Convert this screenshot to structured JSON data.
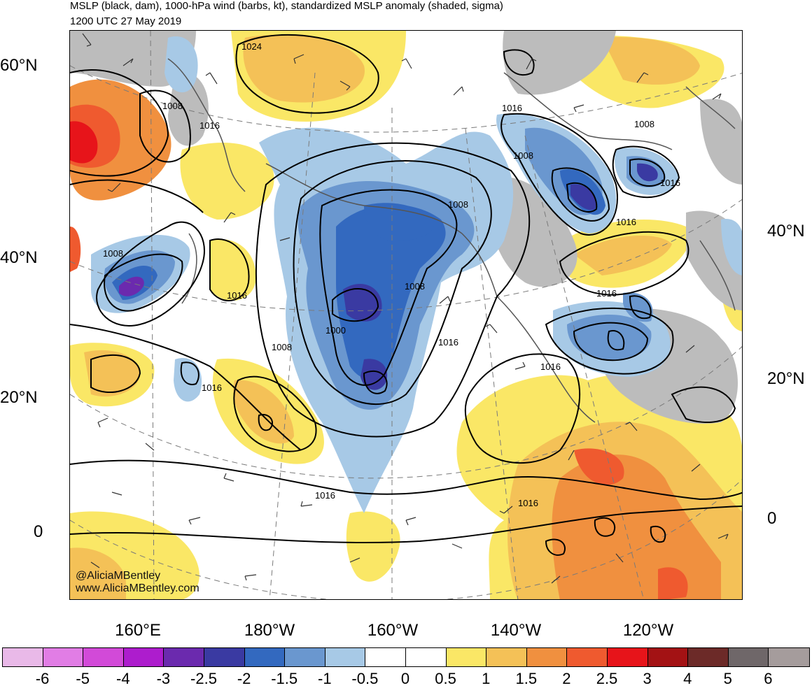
{
  "title": {
    "line1": "MSLP (black, dam), 1000-hPa wind (barbs, kt), standardized MSLP anomaly (shaded, sigma)",
    "line2": "1200 UTC 27 May 2019"
  },
  "credits": {
    "handle": "@AliciaMBentley",
    "website": "www.AliciaMBentley.com"
  },
  "lat_labels_left": [
    "60°N",
    "40°N",
    "20°N",
    "0"
  ],
  "lat_labels_right": [
    "40°N",
    "20°N",
    "0"
  ],
  "lon_labels": [
    "160°E",
    "180°W",
    "160°W",
    "140°W",
    "120°W"
  ],
  "isobar_labels": [
    "1024",
    "1008",
    "1016",
    "1016",
    "1008",
    "1008",
    "1016",
    "1008",
    "1016",
    "1008",
    "1008",
    "1000",
    "1008",
    "1016",
    "1016",
    "1016",
    "1016",
    "1016",
    "1016",
    "1016"
  ],
  "colorbar": {
    "colors": [
      "#e9b9e8",
      "#e17de5",
      "#d24ad8",
      "#ad1dcd",
      "#6b2aae",
      "#3a3aa2",
      "#3369bf",
      "#6a97cf",
      "#a7c9e6",
      "#ffffff",
      "#ffffff",
      "#fae766",
      "#f4c157",
      "#f0903f",
      "#ef5a2f",
      "#e7141a",
      "#a31214",
      "#6c2a28",
      "#6f6769",
      "#a59c9c"
    ],
    "labels": [
      "-6",
      "-5",
      "-4",
      "-3",
      "-2.5",
      "-2",
      "-1.5",
      "-1",
      "-0.5",
      "0",
      "0.5",
      "1",
      "1.5",
      "2",
      "2.5",
      "3",
      "4",
      "5",
      "6"
    ]
  }
}
